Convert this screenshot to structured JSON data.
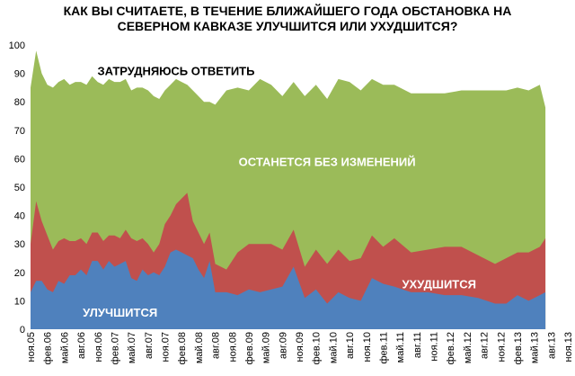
{
  "chart_data": {
    "type": "area",
    "title_lines": [
      "КАК ВЫ СЧИТАЕТЕ, В ТЕЧЕНИЕ БЛИЖАЙШЕГО ГОДА ОБСТАНОВКА НА",
      "СЕВЕРНОМ КАВКАЗЕ УЛУЧШИТСЯ ИЛИ УХУДШИТСЯ?"
    ],
    "stacked": true,
    "ylim": [
      0,
      100
    ],
    "yticks": [
      0,
      10,
      20,
      30,
      40,
      50,
      60,
      70,
      80,
      90,
      100
    ],
    "grid": false,
    "legend": "labels inside areas",
    "x_tick_labels": [
      "ноя.05",
      "фев.06",
      "май.06",
      "авг.06",
      "ноя.06",
      "фев.07",
      "май.07",
      "авг.07",
      "ноя.07",
      "фев.08",
      "май.08",
      "авг.08",
      "ноя.08",
      "фев.09",
      "май.09",
      "авг.09",
      "ноя.09",
      "фев.10",
      "май.10",
      "авг.10",
      "ноя.10",
      "фев.11",
      "май.11",
      "авг.11",
      "ноя.11",
      "фев.12",
      "май.12",
      "авг.12",
      "ноя.12",
      "фев.13",
      "май.13",
      "авг.13",
      "ноя.13"
    ],
    "x_points": [
      0,
      1,
      2,
      3,
      4,
      5,
      6,
      7,
      8,
      9,
      10,
      11,
      12,
      13,
      14,
      15,
      16,
      17,
      18,
      19,
      20,
      21,
      22,
      23,
      24,
      25,
      26,
      27,
      28,
      29,
      30,
      31,
      32,
      33,
      34,
      35,
      36,
      37,
      38,
      39,
      40,
      41,
      42,
      43,
      44,
      45,
      46,
      47,
      48,
      49,
      50,
      51,
      52,
      53,
      54,
      55,
      56,
      57,
      58,
      59,
      60,
      61,
      62,
      63,
      64,
      65,
      66,
      67,
      68,
      69,
      70,
      71,
      72,
      73,
      74,
      75,
      76,
      77,
      78,
      79,
      80,
      81,
      82,
      83,
      84,
      85,
      86,
      87,
      88,
      89,
      90,
      91,
      92,
      93,
      94,
      95,
      96
    ],
    "series": [
      {
        "name": "УЛУЧШИТСЯ",
        "color": "#4F81BD",
        "label_color": "#ffffff",
        "points": [
          [
            0,
            13
          ],
          [
            1,
            17
          ],
          [
            2,
            17
          ],
          [
            3,
            14
          ],
          [
            4,
            13
          ],
          [
            5,
            17
          ],
          [
            6,
            16
          ],
          [
            7,
            19
          ],
          [
            8,
            19
          ],
          [
            9,
            21
          ],
          [
            10,
            19
          ],
          [
            11,
            24
          ],
          [
            12,
            24
          ],
          [
            13,
            21
          ],
          [
            14,
            24
          ],
          [
            15,
            22
          ],
          [
            16,
            23
          ],
          [
            17,
            24
          ],
          [
            18,
            18
          ],
          [
            19,
            17
          ],
          [
            20,
            21
          ],
          [
            21,
            19
          ],
          [
            22,
            20
          ],
          [
            23,
            19
          ],
          [
            24,
            22
          ],
          [
            25,
            27
          ],
          [
            26,
            28
          ],
          [
            27,
            27
          ],
          [
            28,
            26
          ],
          [
            29,
            25
          ],
          [
            30,
            21
          ],
          [
            31,
            18
          ],
          [
            32,
            24
          ],
          [
            33,
            13
          ],
          [
            35,
            13
          ],
          [
            37,
            12
          ],
          [
            39,
            14
          ],
          [
            41,
            13
          ],
          [
            43,
            14
          ],
          [
            45,
            15
          ],
          [
            47,
            22
          ],
          [
            49,
            11
          ],
          [
            51,
            14
          ],
          [
            53,
            9
          ],
          [
            55,
            13
          ],
          [
            57,
            11
          ],
          [
            59,
            10
          ],
          [
            61,
            18
          ],
          [
            63,
            16
          ],
          [
            65,
            15
          ],
          [
            68,
            13
          ],
          [
            71,
            13
          ],
          [
            74,
            12
          ],
          [
            77,
            12
          ],
          [
            80,
            11
          ],
          [
            83,
            9
          ],
          [
            85,
            9
          ],
          [
            87,
            12
          ],
          [
            89,
            10
          ],
          [
            91,
            12
          ],
          [
            92,
            13
          ]
        ],
        "label_point": [
          16,
          6
        ]
      },
      {
        "name": "УХУДШИТСЯ",
        "color": "#C0504D",
        "label_color": "#ffffff",
        "points": [
          [
            0,
            30
          ],
          [
            1,
            45
          ],
          [
            2,
            38
          ],
          [
            3,
            33
          ],
          [
            4,
            28
          ],
          [
            5,
            31
          ],
          [
            6,
            32
          ],
          [
            7,
            31
          ],
          [
            8,
            31
          ],
          [
            9,
            32
          ],
          [
            10,
            30
          ],
          [
            11,
            34
          ],
          [
            12,
            34
          ],
          [
            13,
            31
          ],
          [
            14,
            33
          ],
          [
            15,
            33
          ],
          [
            16,
            32
          ],
          [
            17,
            35
          ],
          [
            18,
            32
          ],
          [
            19,
            31
          ],
          [
            20,
            32
          ],
          [
            21,
            30
          ],
          [
            22,
            27
          ],
          [
            23,
            30
          ],
          [
            24,
            37
          ],
          [
            25,
            40
          ],
          [
            26,
            44
          ],
          [
            27,
            46
          ],
          [
            28,
            48
          ],
          [
            29,
            38
          ],
          [
            30,
            34
          ],
          [
            31,
            30
          ],
          [
            32,
            34
          ],
          [
            33,
            23
          ],
          [
            35,
            21
          ],
          [
            37,
            27
          ],
          [
            39,
            30
          ],
          [
            41,
            30
          ],
          [
            43,
            30
          ],
          [
            45,
            28
          ],
          [
            47,
            35
          ],
          [
            49,
            22
          ],
          [
            51,
            28
          ],
          [
            53,
            23
          ],
          [
            55,
            28
          ],
          [
            57,
            24
          ],
          [
            59,
            25
          ],
          [
            61,
            33
          ],
          [
            63,
            29
          ],
          [
            65,
            32
          ],
          [
            68,
            27
          ],
          [
            71,
            28
          ],
          [
            74,
            29
          ],
          [
            77,
            29
          ],
          [
            80,
            26
          ],
          [
            83,
            23
          ],
          [
            85,
            25
          ],
          [
            87,
            27
          ],
          [
            89,
            27
          ],
          [
            91,
            29
          ],
          [
            92,
            32
          ]
        ],
        "label_point": [
          73,
          16
        ]
      },
      {
        "name": "ОСТАНЕТСЯ БЕЗ ИЗМЕНЕНИЙ",
        "color": "#9BBB59",
        "label_color": "#ffffff",
        "points": [
          [
            0,
            85
          ],
          [
            1,
            98
          ],
          [
            2,
            90
          ],
          [
            3,
            86
          ],
          [
            4,
            85
          ],
          [
            5,
            87
          ],
          [
            6,
            88
          ],
          [
            7,
            86
          ],
          [
            8,
            87
          ],
          [
            9,
            87
          ],
          [
            10,
            86
          ],
          [
            11,
            89
          ],
          [
            12,
            87
          ],
          [
            13,
            86
          ],
          [
            14,
            88
          ],
          [
            15,
            87
          ],
          [
            16,
            87
          ],
          [
            17,
            88
          ],
          [
            18,
            84
          ],
          [
            19,
            85
          ],
          [
            20,
            85
          ],
          [
            21,
            84
          ],
          [
            22,
            82
          ],
          [
            23,
            81
          ],
          [
            24,
            84
          ],
          [
            25,
            86
          ],
          [
            26,
            88
          ],
          [
            27,
            87
          ],
          [
            28,
            86
          ],
          [
            29,
            84
          ],
          [
            30,
            82
          ],
          [
            31,
            80
          ],
          [
            32,
            80
          ],
          [
            33,
            79
          ],
          [
            35,
            84
          ],
          [
            37,
            85
          ],
          [
            39,
            84
          ],
          [
            41,
            88
          ],
          [
            43,
            86
          ],
          [
            45,
            82
          ],
          [
            47,
            87
          ],
          [
            49,
            82
          ],
          [
            51,
            86
          ],
          [
            53,
            81
          ],
          [
            55,
            88
          ],
          [
            57,
            87
          ],
          [
            59,
            84
          ],
          [
            61,
            88
          ],
          [
            63,
            86
          ],
          [
            65,
            86
          ],
          [
            68,
            83
          ],
          [
            71,
            83
          ],
          [
            74,
            83
          ],
          [
            77,
            84
          ],
          [
            80,
            84
          ],
          [
            83,
            84
          ],
          [
            85,
            84
          ],
          [
            87,
            85
          ],
          [
            89,
            84
          ],
          [
            91,
            86
          ],
          [
            92,
            78
          ]
        ],
        "label_point": [
          53,
          59
        ]
      },
      {
        "name": "ЗАТРУДНЯЮСЬ ОТВЕТИТЬ",
        "color": "#ffffff",
        "label_color": "#000000",
        "points": [
          [
            0,
            100
          ],
          [
            92,
            100
          ]
        ],
        "label_point": [
          26,
          91
        ]
      }
    ]
  }
}
